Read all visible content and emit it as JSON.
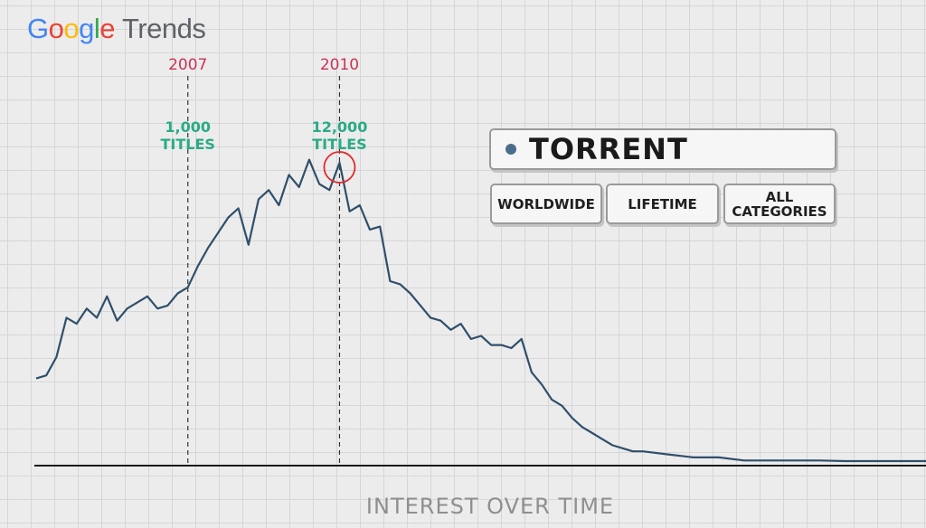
{
  "brand": {
    "google_letters": [
      "G",
      "o",
      "o",
      "g",
      "l",
      "e"
    ],
    "product": "Trends",
    "colors": [
      "#4285f4",
      "#ea4335",
      "#fbbc05",
      "#4285f4",
      "#34a853",
      "#ea4335"
    ],
    "product_color": "#5f6368"
  },
  "search": {
    "term": "TORRENT",
    "dot_color": "#4a6d8c",
    "filters": [
      {
        "label": "WORLDWIDE"
      },
      {
        "label": "LIFETIME"
      },
      {
        "label": "ALL\nCATEGORIES"
      }
    ]
  },
  "chart_data": {
    "type": "line",
    "title": "",
    "xlabel": "INTEREST OVER TIME",
    "ylabel": "",
    "grid": true,
    "xlim": [
      2004.0,
      2021.6
    ],
    "ylim": [
      0,
      100
    ],
    "line_color": "#2f4f6b",
    "series": [
      {
        "values": [
          [
            2004.0,
            29
          ],
          [
            2004.2,
            30
          ],
          [
            2004.4,
            36
          ],
          [
            2004.6,
            49
          ],
          [
            2004.8,
            47
          ],
          [
            2005.0,
            52
          ],
          [
            2005.2,
            49
          ],
          [
            2005.4,
            56
          ],
          [
            2005.6,
            48
          ],
          [
            2005.8,
            52
          ],
          [
            2006.0,
            54
          ],
          [
            2006.2,
            56
          ],
          [
            2006.4,
            52
          ],
          [
            2006.6,
            53
          ],
          [
            2006.8,
            57
          ],
          [
            2007.0,
            59
          ],
          [
            2007.2,
            66
          ],
          [
            2007.4,
            72
          ],
          [
            2007.6,
            77
          ],
          [
            2007.8,
            82
          ],
          [
            2008.0,
            85
          ],
          [
            2008.2,
            73
          ],
          [
            2008.4,
            88
          ],
          [
            2008.6,
            91
          ],
          [
            2008.8,
            86
          ],
          [
            2009.0,
            96
          ],
          [
            2009.2,
            92
          ],
          [
            2009.4,
            101
          ],
          [
            2009.6,
            93
          ],
          [
            2009.8,
            91
          ],
          [
            2010.0,
            100
          ],
          [
            2010.2,
            84
          ],
          [
            2010.4,
            86
          ],
          [
            2010.6,
            78
          ],
          [
            2010.8,
            79
          ],
          [
            2011.0,
            61
          ],
          [
            2011.2,
            60
          ],
          [
            2011.4,
            57
          ],
          [
            2011.6,
            53
          ],
          [
            2011.8,
            49
          ],
          [
            2012.0,
            48
          ],
          [
            2012.2,
            45
          ],
          [
            2012.4,
            47
          ],
          [
            2012.6,
            42
          ],
          [
            2012.8,
            43
          ],
          [
            2013.0,
            40
          ],
          [
            2013.2,
            40
          ],
          [
            2013.4,
            39
          ],
          [
            2013.6,
            42
          ],
          [
            2013.8,
            31
          ],
          [
            2014.0,
            27
          ],
          [
            2014.2,
            22
          ],
          [
            2014.4,
            20
          ],
          [
            2014.6,
            16
          ],
          [
            2014.8,
            13
          ],
          [
            2015.0,
            11
          ],
          [
            2015.2,
            9
          ],
          [
            2015.4,
            7
          ],
          [
            2015.6,
            6
          ],
          [
            2015.8,
            5
          ],
          [
            2016.0,
            5
          ],
          [
            2016.5,
            4
          ],
          [
            2017.0,
            3
          ],
          [
            2017.5,
            3
          ],
          [
            2018.0,
            2
          ],
          [
            2018.5,
            2
          ],
          [
            2019.0,
            2
          ],
          [
            2019.5,
            2
          ],
          [
            2020.0,
            1.8
          ],
          [
            2020.5,
            1.8
          ],
          [
            2021.0,
            1.8
          ],
          [
            2021.6,
            1.8
          ]
        ]
      }
    ],
    "markers": [
      {
        "x": 2007.0,
        "year_label": "2007",
        "annotation": [
          "1,000",
          "TITLES"
        ]
      },
      {
        "x": 2010.0,
        "year_label": "2010",
        "annotation": [
          "12,000",
          "TITLES"
        ],
        "circle": true
      }
    ],
    "colors": {
      "year_label": "#cc3355",
      "annotation": "#2aaa86",
      "highlight": "#e02b2b",
      "axis": "#1a1a1a",
      "dashed": "#333333"
    }
  }
}
